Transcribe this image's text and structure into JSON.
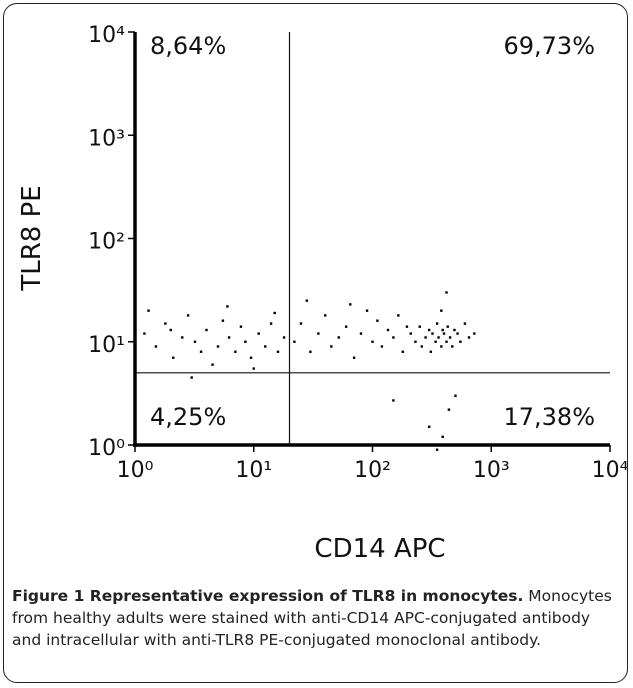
{
  "chart_data": {
    "type": "scatter",
    "log_x": true,
    "log_y": true,
    "xlabel": "CD14 APC",
    "ylabel": "TLR8 PE",
    "color": "#000000",
    "xlim": [
      1,
      10000
    ],
    "ylim": [
      1,
      10000
    ],
    "xticks": [
      {
        "value": 1,
        "label": "10⁰"
      },
      {
        "value": 10,
        "label": "10¹"
      },
      {
        "value": 100,
        "label": "10²"
      },
      {
        "value": 1000,
        "label": "10³"
      },
      {
        "value": 10000,
        "label": "10⁴"
      }
    ],
    "yticks": [
      {
        "value": 1,
        "label": "10⁰"
      },
      {
        "value": 10,
        "label": "10¹"
      },
      {
        "value": 100,
        "label": "10²"
      },
      {
        "value": 1000,
        "label": "10³"
      },
      {
        "value": 10000,
        "label": "10⁴"
      }
    ],
    "gate_x": 20,
    "gate_y": 5,
    "quadrants": [
      {
        "corner": "upper-left",
        "label": "8,64%"
      },
      {
        "corner": "upper-right",
        "label": "69,73%"
      },
      {
        "corner": "lower-left",
        "label": "4,25%"
      },
      {
        "corner": "lower-right",
        "label": "17,38%"
      }
    ],
    "x": [
      1.2,
      1.5,
      1.8,
      2.1,
      2.5,
      2.8,
      3.2,
      3.6,
      4,
      4.5,
      5,
      5.5,
      6.2,
      7,
      7.8,
      8.5,
      9.5,
      11,
      12.5,
      14,
      16,
      18,
      1.3,
      3,
      6,
      10,
      15,
      2,
      22,
      25,
      30,
      35,
      40,
      45,
      52,
      60,
      70,
      80,
      90,
      100,
      110,
      120,
      135,
      150,
      165,
      180,
      195,
      28,
      65,
      150,
      210,
      230,
      250,
      260,
      280,
      300,
      310,
      320,
      340,
      350,
      360,
      380,
      390,
      400,
      420,
      430,
      450,
      470,
      490,
      520,
      550,
      600,
      650,
      720,
      380,
      420,
      300,
      350,
      390,
      500,
      440
    ],
    "y": [
      12,
      9,
      15,
      7,
      11,
      18,
      10,
      8,
      13,
      6,
      9,
      16,
      11,
      8,
      14,
      10,
      7,
      12,
      9,
      15,
      8,
      11,
      20,
      4.5,
      22,
      5.5,
      19,
      13,
      10,
      15,
      8,
      12,
      18,
      9,
      11,
      14,
      7,
      12,
      20,
      10,
      16,
      9,
      13,
      11,
      18,
      8,
      14,
      25,
      23,
      2.7,
      12,
      10,
      14,
      9,
      11,
      13,
      8,
      12,
      10,
      15,
      11,
      9,
      13,
      12,
      10,
      14,
      11,
      9,
      13,
      12,
      10,
      15,
      11,
      12,
      20,
      30,
      1.5,
      0.9,
      1.2,
      3,
      2.2
    ]
  },
  "caption": {
    "title": "Figure 1 Representative expression of TLR8 in monocytes.",
    "text": "Monocytes from healthy adults were stained with anti-CD14 APC-conjugated antibody and intracellular with anti-TLR8 PE-conjugated monoclonal antibody."
  }
}
